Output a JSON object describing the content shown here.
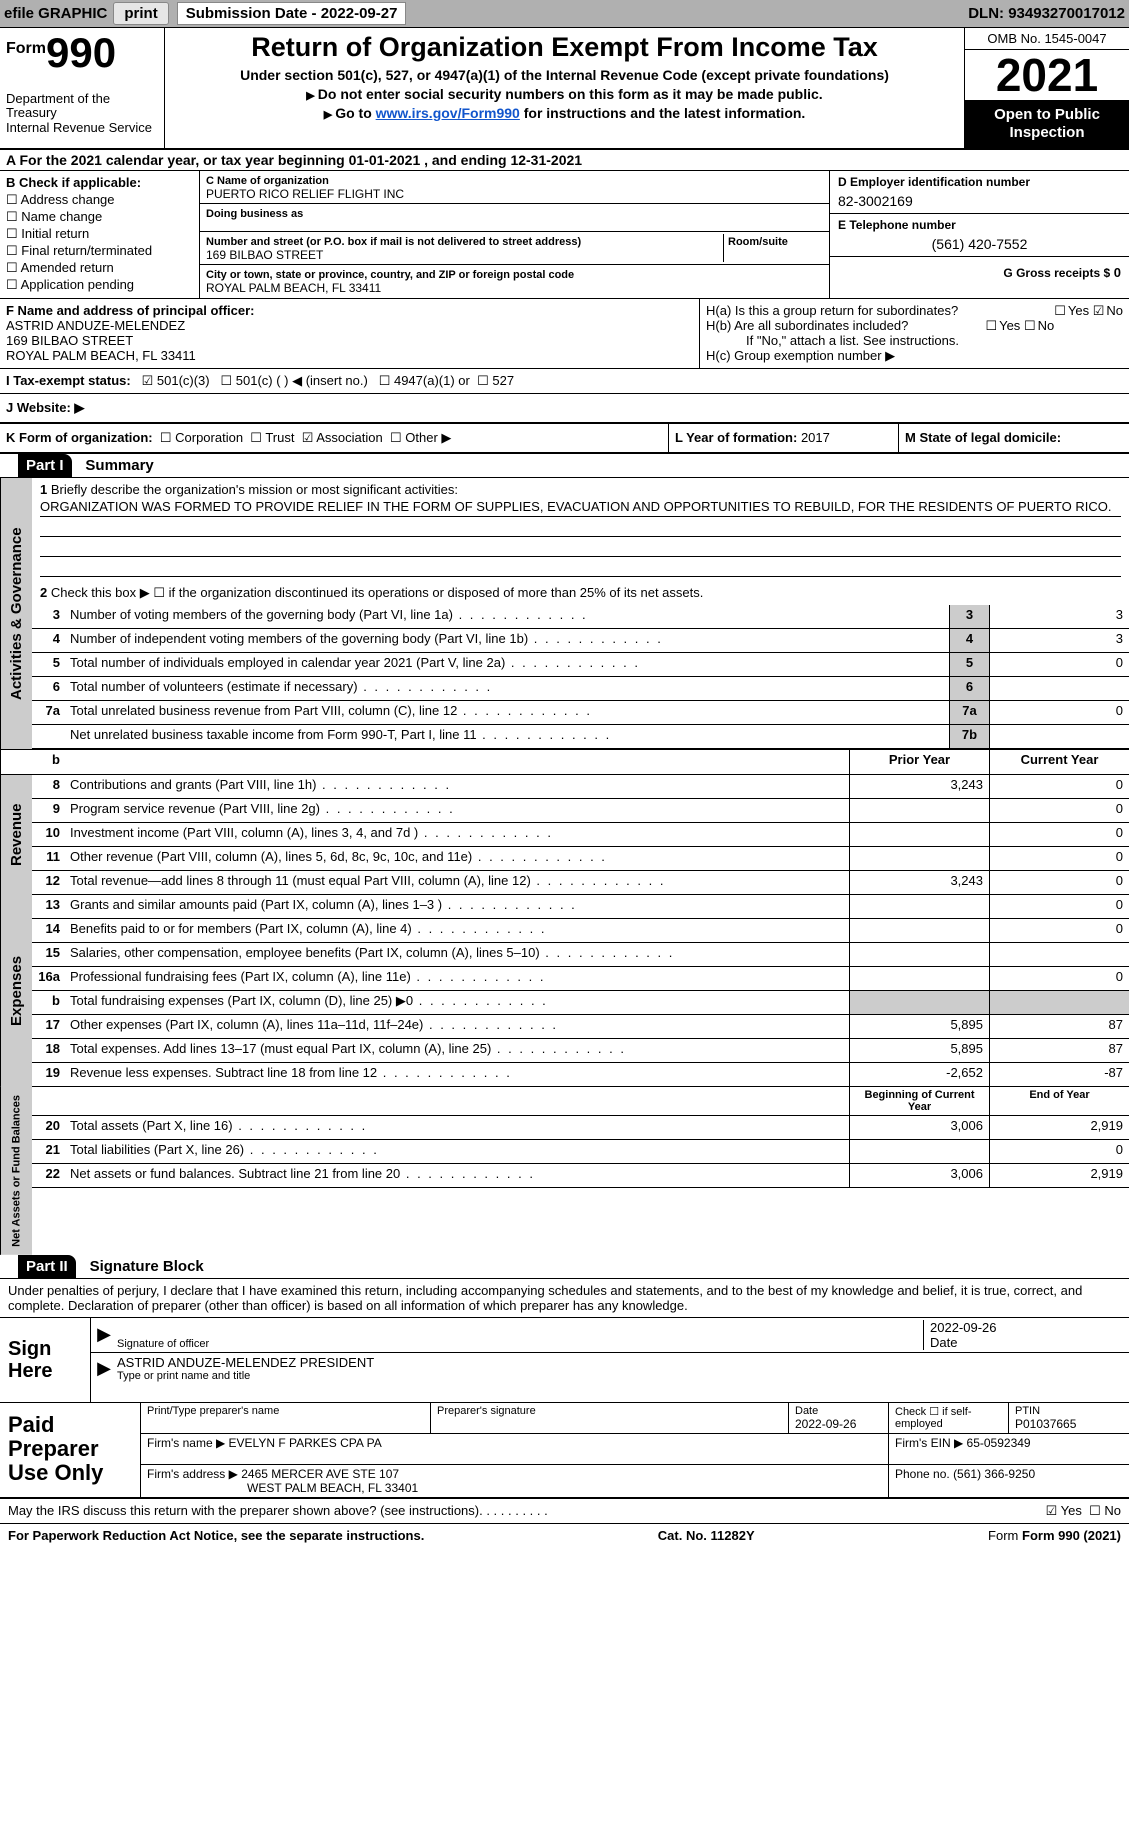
{
  "topbar": {
    "efile": "efile GRAPHIC",
    "print": "print",
    "sub_label": "Submission Date - ",
    "sub_date": "2022-09-27",
    "dln": "DLN: 93493270017012"
  },
  "header": {
    "form_sm": "Form",
    "form_num": "990",
    "dept": "Department of the Treasury\nInternal Revenue Service",
    "title": "Return of Organization Exempt From Income Tax",
    "sub1": "Under section 501(c), 527, or 4947(a)(1) of the Internal Revenue Code (except private foundations)",
    "sub2": "Do not enter social security numbers on this form as it may be made public.",
    "sub3_pre": "Go to ",
    "sub3_link": "www.irs.gov/Form990",
    "sub3_post": " for instructions and the latest information.",
    "omb": "OMB No. 1545-0047",
    "year": "2021",
    "open": "Open to Public Inspection"
  },
  "rowA": "A For the 2021 calendar year, or tax year beginning 01-01-2021   , and ending 12-31-2021",
  "boxB": {
    "hdr": "B Check if applicable:",
    "items": [
      "Address change",
      "Name change",
      "Initial return",
      "Final return/terminated",
      "Amended return",
      "Application pending"
    ]
  },
  "boxC": {
    "name_lbl": "C Name of organization",
    "name": "PUERTO RICO RELIEF FLIGHT INC",
    "dba_lbl": "Doing business as",
    "dba": "",
    "addr_lbl": "Number and street (or P.O. box if mail is not delivered to street address)",
    "room_lbl": "Room/suite",
    "addr": "169 BILBAO STREET",
    "city_lbl": "City or town, state or province, country, and ZIP or foreign postal code",
    "city": "ROYAL PALM BEACH, FL  33411"
  },
  "boxD": {
    "ein_lbl": "D Employer identification number",
    "ein": "82-3002169",
    "phone_lbl": "E Telephone number",
    "phone": "(561) 420-7552",
    "gross_lbl": "G Gross receipts $",
    "gross": "0"
  },
  "boxF": {
    "lbl": "F Name and address of principal officer:",
    "name": "ASTRID ANDUZE-MELENDEZ",
    "addr1": "169 BILBAO STREET",
    "addr2": "ROYAL PALM BEACH, FL  33411"
  },
  "boxH": {
    "a": "H(a)  Is this a group return for subordinates?",
    "b": "H(b)  Are all subordinates included?",
    "b_note": "If \"No,\" attach a list. See instructions.",
    "c": "H(c)  Group exemption number ▶"
  },
  "rowI": {
    "lbl": "I   Tax-exempt status:",
    "o1": "501(c)(3)",
    "o2": "501(c) (  ) ◀ (insert no.)",
    "o3": "4947(a)(1) or",
    "o4": "527"
  },
  "rowJ": "J   Website: ▶",
  "rowK": {
    "lbl": "K Form of organization:",
    "o1": "Corporation",
    "o2": "Trust",
    "o3": "Association",
    "o4": "Other ▶",
    "l_lbl": "L Year of formation: ",
    "l_val": "2017",
    "m_lbl": "M State of legal domicile:",
    "m_val": ""
  },
  "part1": {
    "tag": "Part I",
    "title": "Summary",
    "l1_lbl": "Briefly describe the organization's mission or most significant activities:",
    "l1_txt": "ORGANIZATION WAS FORMED TO PROVIDE RELIEF IN THE FORM OF SUPPLIES, EVACUATION AND OPPORTUNITIES TO REBUILD, FOR THE RESIDENTS OF PUERTO RICO.",
    "l2": "Check this box ▶ ☐  if the organization discontinued its operations or disposed of more than 25% of its net assets.",
    "lines_ag": [
      {
        "n": "3",
        "d": "Number of voting members of the governing body (Part VI, line 1a)",
        "box": "3",
        "v": "3"
      },
      {
        "n": "4",
        "d": "Number of independent voting members of the governing body (Part VI, line 1b)",
        "box": "4",
        "v": "3"
      },
      {
        "n": "5",
        "d": "Total number of individuals employed in calendar year 2021 (Part V, line 2a)",
        "box": "5",
        "v": "0"
      },
      {
        "n": "6",
        "d": "Total number of volunteers (estimate if necessary)",
        "box": "6",
        "v": ""
      },
      {
        "n": "7a",
        "d": "Total unrelated business revenue from Part VIII, column (C), line 12",
        "box": "7a",
        "v": "0"
      },
      {
        "n": "",
        "d": "Net unrelated business taxable income from Form 990-T, Part I, line 11",
        "box": "7b",
        "v": ""
      }
    ],
    "hdr_prior": "Prior Year",
    "hdr_curr": "Current Year",
    "rev": [
      {
        "n": "8",
        "d": "Contributions and grants (Part VIII, line 1h)",
        "p": "3,243",
        "c": "0"
      },
      {
        "n": "9",
        "d": "Program service revenue (Part VIII, line 2g)",
        "p": "",
        "c": "0"
      },
      {
        "n": "10",
        "d": "Investment income (Part VIII, column (A), lines 3, 4, and 7d )",
        "p": "",
        "c": "0"
      },
      {
        "n": "11",
        "d": "Other revenue (Part VIII, column (A), lines 5, 6d, 8c, 9c, 10c, and 11e)",
        "p": "",
        "c": "0"
      },
      {
        "n": "12",
        "d": "Total revenue—add lines 8 through 11 (must equal Part VIII, column (A), line 12)",
        "p": "3,243",
        "c": "0"
      }
    ],
    "exp": [
      {
        "n": "13",
        "d": "Grants and similar amounts paid (Part IX, column (A), lines 1–3 )",
        "p": "",
        "c": "0"
      },
      {
        "n": "14",
        "d": "Benefits paid to or for members (Part IX, column (A), line 4)",
        "p": "",
        "c": "0"
      },
      {
        "n": "15",
        "d": "Salaries, other compensation, employee benefits (Part IX, column (A), lines 5–10)",
        "p": "",
        "c": ""
      },
      {
        "n": "16a",
        "d": "Professional fundraising fees (Part IX, column (A), line 11e)",
        "p": "",
        "c": "0"
      },
      {
        "n": "b",
        "d": "Total fundraising expenses (Part IX, column (D), line 25) ▶0",
        "p": "shaded",
        "c": "shaded"
      },
      {
        "n": "17",
        "d": "Other expenses (Part IX, column (A), lines 11a–11d, 11f–24e)",
        "p": "5,895",
        "c": "87"
      },
      {
        "n": "18",
        "d": "Total expenses. Add lines 13–17 (must equal Part IX, column (A), line 25)",
        "p": "5,895",
        "c": "87"
      },
      {
        "n": "19",
        "d": "Revenue less expenses. Subtract line 18 from line 12",
        "p": "-2,652",
        "c": "-87"
      }
    ],
    "hdr_beg": "Beginning of Current Year",
    "hdr_end": "End of Year",
    "net": [
      {
        "n": "20",
        "d": "Total assets (Part X, line 16)",
        "p": "3,006",
        "c": "2,919"
      },
      {
        "n": "21",
        "d": "Total liabilities (Part X, line 26)",
        "p": "",
        "c": "0"
      },
      {
        "n": "22",
        "d": "Net assets or fund balances. Subtract line 21 from line 20",
        "p": "3,006",
        "c": "2,919"
      }
    ],
    "side_ag": "Activities & Governance",
    "side_rev": "Revenue",
    "side_exp": "Expenses",
    "side_net": "Net Assets or Fund Balances"
  },
  "part2": {
    "tag": "Part II",
    "title": "Signature Block",
    "decl": "Under penalties of perjury, I declare that I have examined this return, including accompanying schedules and statements, and to the best of my knowledge and belief, it is true, correct, and complete. Declaration of preparer (other than officer) is based on all information of which preparer has any knowledge.",
    "sign_here": "Sign Here",
    "sig_lbl": "Signature of officer",
    "sig_date": "2022-09-26",
    "date_lbl": "Date",
    "name_title": "ASTRID ANDUZE-MELENDEZ  PRESIDENT",
    "name_title_lbl": "Type or print name and title",
    "paid": "Paid Preparer Use Only",
    "p_name_lbl": "Print/Type preparer's name",
    "p_sig_lbl": "Preparer's signature",
    "p_date_lbl": "Date",
    "p_date": "2022-09-26",
    "p_check_lbl": "Check ☐ if self-employed",
    "ptin_lbl": "PTIN",
    "ptin": "P01037665",
    "firm_name_lbl": "Firm's name   ▶",
    "firm_name": "EVELYN F PARKES CPA PA",
    "firm_ein_lbl": "Firm's EIN ▶",
    "firm_ein": "65-0592349",
    "firm_addr_lbl": "Firm's address ▶",
    "firm_addr1": "2465 MERCER AVE STE 107",
    "firm_addr2": "WEST PALM BEACH, FL  33401",
    "firm_phone_lbl": "Phone no.",
    "firm_phone": "(561) 366-9250"
  },
  "footer": {
    "discuss": "May the IRS discuss this return with the preparer shown above? (see instructions)",
    "pra": "For Paperwork Reduction Act Notice, see the separate instructions.",
    "cat": "Cat. No. 11282Y",
    "form": "Form 990 (2021)"
  }
}
